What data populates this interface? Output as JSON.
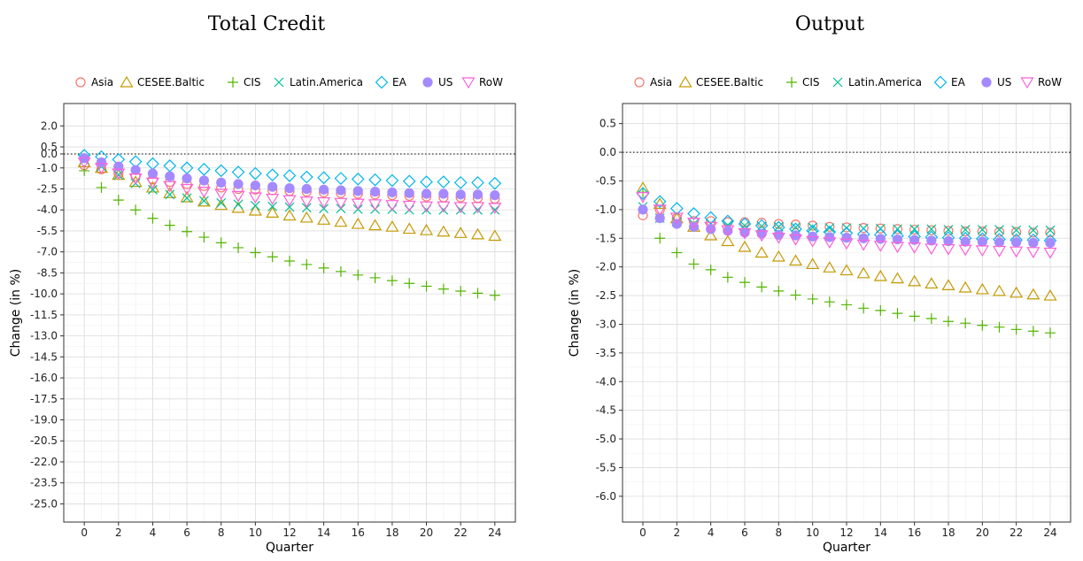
{
  "chart_data": [
    {
      "type": "scatter",
      "title": "Total Credit",
      "xlabel": "Quarter",
      "ylabel": "Change (in %)",
      "xlim": [
        -1.2,
        25.2
      ],
      "ylim": [
        -26.3,
        3.6
      ],
      "xticks": [
        0,
        2,
        4,
        6,
        8,
        10,
        12,
        14,
        16,
        18,
        20,
        22,
        24
      ],
      "yticks": [
        2.0,
        0.5,
        0.0,
        -1.0,
        -2.5,
        -4.0,
        -5.5,
        -7.0,
        -8.5,
        -10.0,
        -11.5,
        -13.0,
        -14.5,
        -16.0,
        -17.5,
        -19.0,
        -20.5,
        -22.0,
        -23.5,
        -25.0
      ],
      "ytick_labels": [
        "2.0",
        "0.5",
        "0.0",
        "-1.0",
        "-2.5",
        "-4.0",
        "-5.5",
        "-7.0",
        "-8.5",
        "-10.0",
        "-11.5",
        "-13.0",
        "-14.5",
        "-16.0",
        "-17.5",
        "-19.0",
        "-20.5",
        "-22.0",
        "-23.5",
        "-25.0"
      ],
      "reference_line": 0.0,
      "grid": true,
      "legend_position": "top",
      "x": [
        0,
        1,
        2,
        3,
        4,
        5,
        6,
        7,
        8,
        9,
        10,
        11,
        12,
        13,
        14,
        15,
        16,
        17,
        18,
        19,
        20,
        21,
        22,
        23,
        24
      ],
      "series": [
        {
          "name": "Asia",
          "values": [
            -0.8,
            -1.1,
            -1.4,
            -1.6,
            -1.8,
            -2.0,
            -2.15,
            -2.3,
            -2.4,
            -2.5,
            -2.55,
            -2.6,
            -2.65,
            -2.7,
            -2.75,
            -2.8,
            -2.85,
            -2.9,
            -2.95,
            -3.0,
            -3.05,
            -3.1,
            -3.1,
            -3.15,
            -3.2
          ]
        },
        {
          "name": "CESEE.Baltic",
          "values": [
            -0.6,
            -1.0,
            -1.5,
            -2.0,
            -2.4,
            -2.8,
            -3.1,
            -3.4,
            -3.65,
            -3.85,
            -4.05,
            -4.2,
            -4.4,
            -4.55,
            -4.7,
            -4.85,
            -5.0,
            -5.1,
            -5.2,
            -5.35,
            -5.45,
            -5.55,
            -5.65,
            -5.75,
            -5.85
          ]
        },
        {
          "name": "CIS",
          "values": [
            -1.2,
            -2.4,
            -3.3,
            -4.0,
            -4.6,
            -5.1,
            -5.55,
            -5.95,
            -6.35,
            -6.7,
            -7.05,
            -7.35,
            -7.65,
            -7.9,
            -8.15,
            -8.4,
            -8.65,
            -8.85,
            -9.05,
            -9.25,
            -9.45,
            -9.65,
            -9.8,
            -9.95,
            -10.1
          ]
        },
        {
          "name": "Latin.America",
          "values": [
            -0.4,
            -0.9,
            -1.5,
            -2.1,
            -2.55,
            -2.9,
            -3.15,
            -3.35,
            -3.5,
            -3.6,
            -3.7,
            -3.75,
            -3.8,
            -3.85,
            -3.9,
            -3.9,
            -3.95,
            -3.95,
            -3.95,
            -4.0,
            -4.0,
            -4.0,
            -4.0,
            -4.0,
            -4.0
          ]
        },
        {
          "name": "EA",
          "values": [
            -0.1,
            -0.2,
            -0.4,
            -0.55,
            -0.7,
            -0.85,
            -1.0,
            -1.1,
            -1.2,
            -1.3,
            -1.4,
            -1.5,
            -1.55,
            -1.65,
            -1.7,
            -1.75,
            -1.8,
            -1.85,
            -1.9,
            -1.95,
            -2.0,
            -2.0,
            -2.05,
            -2.05,
            -2.1
          ]
        },
        {
          "name": "US",
          "values": [
            -0.3,
            -0.6,
            -0.9,
            -1.15,
            -1.4,
            -1.6,
            -1.75,
            -1.9,
            -2.05,
            -2.15,
            -2.25,
            -2.35,
            -2.45,
            -2.5,
            -2.55,
            -2.6,
            -2.65,
            -2.7,
            -2.75,
            -2.8,
            -2.85,
            -2.85,
            -2.9,
            -2.9,
            -2.95
          ]
        },
        {
          "name": "RoW",
          "values": [
            -0.6,
            -1.0,
            -1.4,
            -1.75,
            -2.05,
            -2.3,
            -2.5,
            -2.7,
            -2.85,
            -3.0,
            -3.1,
            -3.2,
            -3.3,
            -3.4,
            -3.45,
            -3.5,
            -3.55,
            -3.6,
            -3.65,
            -3.7,
            -3.75,
            -3.75,
            -3.8,
            -3.8,
            -3.85
          ]
        }
      ]
    },
    {
      "type": "scatter",
      "title": "Output",
      "xlabel": "Quarter",
      "ylabel": "Change (in %)",
      "xlim": [
        -1.2,
        25.2
      ],
      "ylim": [
        -6.45,
        0.85
      ],
      "xticks": [
        0,
        2,
        4,
        6,
        8,
        10,
        12,
        14,
        16,
        18,
        20,
        22,
        24
      ],
      "yticks": [
        0.5,
        0.0,
        -0.5,
        -1.0,
        -1.5,
        -2.0,
        -2.5,
        -3.0,
        -3.5,
        -4.0,
        -4.5,
        -5.0,
        -5.5,
        -6.0
      ],
      "ytick_labels": [
        "0.5",
        "0.0",
        "-0.5",
        "-1.0",
        "-1.5",
        "-2.0",
        "-2.5",
        "-3.0",
        "-3.5",
        "-4.0",
        "-4.5",
        "-5.0",
        "-5.5",
        "-6.0"
      ],
      "reference_line": 0.0,
      "grid": true,
      "legend_position": "top",
      "x": [
        0,
        1,
        2,
        3,
        4,
        5,
        6,
        7,
        8,
        9,
        10,
        11,
        12,
        13,
        14,
        15,
        16,
        17,
        18,
        19,
        20,
        21,
        22,
        23,
        24
      ],
      "series": [
        {
          "name": "Asia",
          "values": [
            -1.1,
            -1.0,
            -1.15,
            -1.2,
            -1.2,
            -1.22,
            -1.22,
            -1.23,
            -1.25,
            -1.26,
            -1.28,
            -1.3,
            -1.31,
            -1.32,
            -1.33,
            -1.34,
            -1.35,
            -1.36,
            -1.37,
            -1.38,
            -1.38,
            -1.39,
            -1.39,
            -1.4,
            -1.4
          ]
        },
        {
          "name": "CESEE.Baltic",
          "values": [
            -0.62,
            -0.9,
            -1.15,
            -1.3,
            -1.45,
            -1.55,
            -1.65,
            -1.75,
            -1.82,
            -1.89,
            -1.95,
            -2.01,
            -2.06,
            -2.11,
            -2.16,
            -2.2,
            -2.25,
            -2.29,
            -2.32,
            -2.36,
            -2.39,
            -2.42,
            -2.45,
            -2.48,
            -2.5
          ]
        },
        {
          "name": "CIS",
          "values": [
            -0.7,
            -1.5,
            -1.75,
            -1.95,
            -2.05,
            -2.18,
            -2.27,
            -2.35,
            -2.42,
            -2.49,
            -2.56,
            -2.61,
            -2.66,
            -2.72,
            -2.76,
            -2.81,
            -2.86,
            -2.9,
            -2.95,
            -2.98,
            -3.02,
            -3.05,
            -3.09,
            -3.12,
            -3.15
          ]
        },
        {
          "name": "Latin.America",
          "values": [
            -0.95,
            -1.15,
            -1.22,
            -1.25,
            -1.25,
            -1.27,
            -1.28,
            -1.29,
            -1.3,
            -1.31,
            -1.31,
            -1.32,
            -1.32,
            -1.33,
            -1.33,
            -1.34,
            -1.34,
            -1.34,
            -1.35,
            -1.35,
            -1.35,
            -1.35,
            -1.36,
            -1.36,
            -1.36
          ]
        },
        {
          "name": "EA",
          "values": [
            -0.72,
            -0.86,
            -0.98,
            -1.07,
            -1.14,
            -1.2,
            -1.25,
            -1.28,
            -1.31,
            -1.34,
            -1.37,
            -1.39,
            -1.41,
            -1.43,
            -1.44,
            -1.46,
            -1.47,
            -1.48,
            -1.49,
            -1.5,
            -1.51,
            -1.52,
            -1.53,
            -1.53,
            -1.54
          ]
        },
        {
          "name": "US",
          "values": [
            -1.0,
            -1.15,
            -1.25,
            -1.3,
            -1.34,
            -1.37,
            -1.4,
            -1.42,
            -1.44,
            -1.45,
            -1.47,
            -1.48,
            -1.49,
            -1.5,
            -1.51,
            -1.52,
            -1.53,
            -1.54,
            -1.55,
            -1.56,
            -1.56,
            -1.57,
            -1.57,
            -1.58,
            -1.58
          ]
        },
        {
          "name": "RoW",
          "values": [
            -0.78,
            -1.0,
            -1.14,
            -1.23,
            -1.3,
            -1.36,
            -1.41,
            -1.45,
            -1.49,
            -1.52,
            -1.55,
            -1.57,
            -1.59,
            -1.61,
            -1.63,
            -1.65,
            -1.66,
            -1.68,
            -1.69,
            -1.7,
            -1.71,
            -1.72,
            -1.73,
            -1.74,
            -1.75
          ]
        }
      ]
    }
  ],
  "series_styles": [
    {
      "name": "Asia",
      "shape": "circle-open",
      "color": "#F8766D"
    },
    {
      "name": "CESEE.Baltic",
      "shape": "triangle-open",
      "color": "#C49A00"
    },
    {
      "name": "CIS",
      "shape": "plus",
      "color": "#53B400"
    },
    {
      "name": "Latin.America",
      "shape": "cross",
      "color": "#00C094"
    },
    {
      "name": "EA",
      "shape": "diamond-open",
      "color": "#00B6EB"
    },
    {
      "name": "US",
      "shape": "circle-filled",
      "color": "#A58AFF"
    },
    {
      "name": "RoW",
      "shape": "triangle-down-open",
      "color": "#FB61D7"
    }
  ]
}
